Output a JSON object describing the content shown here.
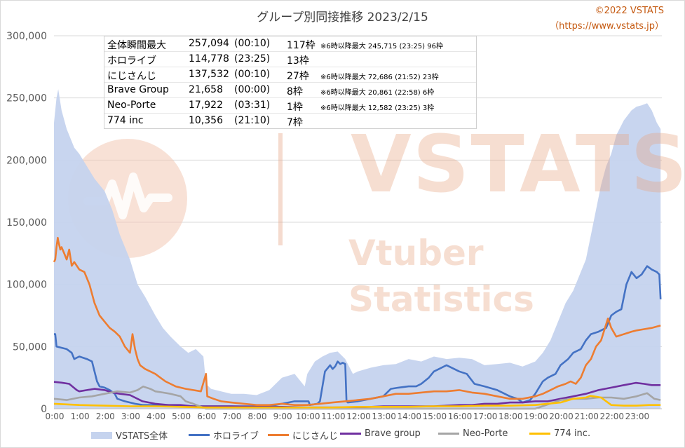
{
  "title": "グループ別同接推移 2023/2/15",
  "credit": {
    "line1": "©2022 VSTATS",
    "line2": "（https://www.vstats.jp）"
  },
  "stats_rows": [
    {
      "name": "全体瞬間最大",
      "value": "257,094",
      "time": "(00:10)",
      "count": "117枠",
      "note": "※6時以降最大 245,715 (23:25) 96枠"
    },
    {
      "name": "ホロライブ",
      "value": "114,778",
      "time": "(23:25)",
      "count": "13枠",
      "note": ""
    },
    {
      "name": "にじさんじ",
      "value": "137,532",
      "time": "(00:10)",
      "count": "27枠",
      "note": "※6時以降最大 72,686 (21:52) 23枠"
    },
    {
      "name": "Brave Group",
      "value": "21,658",
      "time": "(00:00)",
      "count": "8枠",
      "note": "※6時以降最大 20,861 (22:58) 6枠"
    },
    {
      "name": "Neo-Porte",
      "value": "17,922",
      "time": "(03:31)",
      "count": "1枠",
      "note": "※6時以降最大 12,582 (23:25) 3枠"
    },
    {
      "name": "774 inc",
      "value": "10,356",
      "time": "(21:10)",
      "count": "7枠",
      "note": ""
    }
  ],
  "watermark": {
    "brand": "VSTATS",
    "sub1": "Vtuber",
    "sub2": "Statistics"
  },
  "chart_data": {
    "type": "line",
    "title": "グループ別同接推移 2023/2/15",
    "xlabel": "",
    "ylabel": "",
    "xlim": [
      0,
      24
    ],
    "ylim": [
      0,
      300000
    ],
    "y_ticks": [
      0,
      50000,
      100000,
      150000,
      200000,
      250000,
      300000
    ],
    "y_tick_labels": [
      "0",
      "50,000",
      "100,000",
      "150,000",
      "200,000",
      "250,000",
      "300,000"
    ],
    "x_tick_labels": [
      "0:00",
      "1:00",
      "2:00",
      "3:00",
      "4:00",
      "5:00",
      "6:00",
      "7:00",
      "8:00",
      "9:00",
      "10:00",
      "11:00",
      "12:00",
      "13:00",
      "14:00",
      "15:00",
      "16:00",
      "17:00",
      "18:00",
      "19:00",
      "20:00",
      "21:00",
      "22:00",
      "23:00"
    ],
    "grid": "horizontal",
    "legend": "bottom",
    "series": [
      {
        "name": "VSTATS全体",
        "style": "area",
        "color": "#c5d3ee",
        "x": [
          0,
          0.1,
          0.17,
          0.3,
          0.5,
          0.8,
          1.0,
          1.3,
          1.6,
          2.0,
          2.3,
          2.6,
          3.0,
          3.3,
          3.6,
          4.0,
          4.3,
          4.6,
          5.0,
          5.3,
          5.6,
          5.9,
          6.0,
          6.2,
          6.6,
          7.0,
          7.5,
          8.0,
          8.5,
          9.0,
          9.5,
          9.9,
          10.0,
          10.3,
          10.6,
          10.9,
          11.2,
          11.5,
          11.8,
          12.0,
          12.5,
          13.0,
          13.5,
          14.0,
          14.5,
          15.0,
          15.5,
          16.0,
          16.5,
          17.0,
          17.5,
          18.0,
          18.5,
          19.0,
          19.3,
          19.6,
          19.9,
          20.2,
          20.5,
          20.8,
          21.0,
          21.2,
          21.4,
          21.6,
          21.8,
          22.0,
          22.2,
          22.5,
          22.8,
          23.0,
          23.2,
          23.42,
          23.6,
          23.8,
          23.95
        ],
        "values": [
          230000,
          250000,
          257000,
          240000,
          225000,
          210000,
          205000,
          195000,
          185000,
          175000,
          160000,
          140000,
          120000,
          100000,
          90000,
          75000,
          65000,
          58000,
          50000,
          45000,
          48000,
          42000,
          20000,
          16000,
          14000,
          12000,
          12000,
          11000,
          15000,
          25000,
          28000,
          18000,
          28000,
          38000,
          42000,
          45000,
          46000,
          40000,
          28000,
          30000,
          33000,
          35000,
          36000,
          40000,
          38000,
          42000,
          40000,
          41000,
          40000,
          35000,
          36000,
          37000,
          34000,
          38000,
          45000,
          55000,
          70000,
          85000,
          95000,
          110000,
          120000,
          140000,
          160000,
          180000,
          195000,
          205000,
          220000,
          232000,
          240000,
          243000,
          244000,
          245700,
          240000,
          230000,
          225000
        ]
      },
      {
        "name": "ホロライブ",
        "style": "line",
        "color": "#4472c4",
        "x": [
          0,
          0.05,
          0.1,
          0.5,
          0.7,
          0.8,
          1.0,
          1.3,
          1.5,
          1.6,
          1.7,
          1.8,
          2.0,
          2.2,
          2.4,
          2.5,
          2.8,
          3.0,
          3.2,
          3.5,
          3.8,
          4.0,
          4.5,
          5.0,
          5.5,
          6.0,
          6.5,
          7.0,
          7.5,
          8.0,
          8.5,
          9.0,
          9.5,
          10.0,
          10.05,
          10.1,
          10.4,
          10.5,
          10.7,
          10.9,
          11.0,
          11.1,
          11.2,
          11.3,
          11.4,
          11.5,
          11.55,
          11.6,
          12.0,
          12.5,
          13.0,
          13.3,
          13.6,
          14.0,
          14.3,
          14.5,
          14.8,
          15.0,
          15.2,
          15.5,
          16.0,
          16.3,
          16.6,
          17.0,
          17.5,
          18.0,
          18.3,
          18.5,
          18.8,
          19.0,
          19.3,
          19.5,
          19.8,
          20.0,
          20.3,
          20.5,
          20.8,
          21.0,
          21.2,
          21.5,
          21.8,
          22.0,
          22.2,
          22.4,
          22.6,
          22.8,
          23.0,
          23.2,
          23.42,
          23.6,
          23.8,
          23.9,
          23.95
        ],
        "values": [
          60000,
          60000,
          50000,
          48000,
          45000,
          40000,
          42000,
          40000,
          38000,
          30000,
          22000,
          18000,
          17000,
          15000,
          12000,
          8000,
          6000,
          5000,
          4000,
          3000,
          3000,
          3000,
          3000,
          2000,
          2000,
          2000,
          2000,
          2000,
          2000,
          2000,
          2000,
          4000,
          6000,
          6000,
          6000,
          3000,
          4000,
          6000,
          30000,
          35000,
          32000,
          34000,
          38000,
          36000,
          37000,
          36000,
          6000,
          5000,
          6000,
          8000,
          10000,
          16000,
          17000,
          18000,
          18000,
          20000,
          25000,
          30000,
          32000,
          35000,
          30000,
          28000,
          20000,
          18000,
          15000,
          10000,
          8000,
          5000,
          7000,
          12000,
          22000,
          25000,
          28000,
          35000,
          40000,
          45000,
          48000,
          55000,
          60000,
          62000,
          65000,
          75000,
          78000,
          80000,
          100000,
          110000,
          105000,
          108000,
          114700,
          112000,
          110000,
          108000,
          88000
        ]
      },
      {
        "name": "にじさんじ",
        "style": "line",
        "color": "#ed7d31",
        "x": [
          0,
          0.05,
          0.1,
          0.15,
          0.17,
          0.25,
          0.3,
          0.4,
          0.5,
          0.6,
          0.7,
          0.8,
          1.0,
          1.2,
          1.4,
          1.6,
          1.8,
          2.0,
          2.2,
          2.4,
          2.6,
          2.8,
          3.0,
          3.1,
          3.2,
          3.3,
          3.4,
          3.6,
          3.8,
          4.0,
          4.2,
          4.4,
          4.6,
          4.8,
          5.0,
          5.2,
          5.5,
          5.8,
          6.0,
          6.05,
          6.3,
          6.6,
          7.0,
          7.5,
          8.0,
          8.5,
          9.0,
          9.5,
          10.0,
          10.5,
          11.0,
          11.5,
          12.0,
          12.5,
          13.0,
          13.5,
          14.0,
          14.5,
          15.0,
          15.5,
          16.0,
          16.5,
          17.0,
          17.5,
          18.0,
          18.5,
          19.0,
          19.3,
          19.6,
          19.9,
          20.2,
          20.4,
          20.6,
          20.8,
          21.0,
          21.2,
          21.4,
          21.6,
          21.87,
          22.0,
          22.2,
          22.5,
          22.8,
          23.0,
          23.3,
          23.6,
          23.95
        ],
        "values": [
          118000,
          120000,
          130000,
          137500,
          135000,
          128000,
          130000,
          125000,
          120000,
          128000,
          115000,
          118000,
          112000,
          110000,
          100000,
          85000,
          75000,
          70000,
          65000,
          62000,
          58000,
          50000,
          45000,
          60000,
          48000,
          40000,
          35000,
          32000,
          30000,
          28000,
          25000,
          22000,
          20000,
          18000,
          17000,
          16000,
          15000,
          14000,
          28000,
          10000,
          8000,
          6000,
          5000,
          4000,
          3000,
          3000,
          4000,
          3000,
          3000,
          4000,
          5000,
          6000,
          7000,
          8000,
          10000,
          12000,
          12000,
          13000,
          14000,
          14000,
          15000,
          13000,
          12000,
          10000,
          8000,
          8000,
          10000,
          12000,
          15000,
          18000,
          20000,
          22000,
          20000,
          25000,
          35000,
          40000,
          50000,
          55000,
          72600,
          65000,
          58000,
          60000,
          62000,
          63000,
          64000,
          65000,
          67000
        ]
      },
      {
        "name": "Brave group",
        "style": "line",
        "color": "#7030a0",
        "x": [
          0,
          0.3,
          0.6,
          0.9,
          1.0,
          1.3,
          1.6,
          2.0,
          2.3,
          2.6,
          3.0,
          3.5,
          4.0,
          4.5,
          5.0,
          5.5,
          6.0,
          7.0,
          8.0,
          9.0,
          10.0,
          11.0,
          12.0,
          13.0,
          14.0,
          15.0,
          16.0,
          16.5,
          17.0,
          17.5,
          18.0,
          18.5,
          19.0,
          19.5,
          20.0,
          20.5,
          21.0,
          21.5,
          22.0,
          22.5,
          22.97,
          23.3,
          23.6,
          23.95
        ],
        "values": [
          21600,
          21000,
          20000,
          15000,
          14000,
          15000,
          16000,
          15000,
          13000,
          12000,
          11000,
          6000,
          4000,
          3000,
          3000,
          2000,
          2000,
          2000,
          1500,
          1500,
          1000,
          1000,
          1000,
          2000,
          2000,
          2000,
          3000,
          3000,
          4000,
          4000,
          5000,
          5000,
          6000,
          6000,
          8000,
          10000,
          12000,
          15000,
          17000,
          19000,
          20800,
          20000,
          19000,
          19000
        ]
      },
      {
        "name": "Neo-Porte",
        "style": "line",
        "color": "#a5a5a5",
        "x": [
          0,
          0.5,
          1.0,
          1.5,
          2.0,
          2.5,
          3.0,
          3.3,
          3.52,
          3.8,
          4.0,
          4.3,
          4.6,
          5.0,
          5.2,
          5.5,
          6.0,
          7.0,
          8.0,
          9.0,
          10.0,
          11.0,
          12.0,
          13.0,
          14.0,
          15.0,
          16.0,
          17.0,
          18.0,
          19.0,
          20.0,
          20.5,
          21.0,
          21.5,
          22.0,
          22.5,
          23.0,
          23.42,
          23.7,
          23.95
        ],
        "values": [
          8000,
          7000,
          9000,
          10000,
          12000,
          14000,
          13000,
          15000,
          17900,
          16000,
          14000,
          13000,
          12000,
          10000,
          6000,
          4000,
          0,
          0,
          0,
          0,
          0,
          0,
          0,
          0,
          0,
          0,
          0,
          0,
          0,
          0,
          7000,
          8000,
          8000,
          9000,
          9000,
          8000,
          10000,
          12500,
          8000,
          7000
        ]
      },
      {
        "name": "774 inc.",
        "style": "line",
        "color": "#ffc000",
        "x": [
          0,
          0.5,
          1.0,
          2.0,
          3.0,
          4.0,
          5.0,
          6.0,
          7.0,
          8.0,
          9.0,
          10.0,
          11.0,
          12.0,
          13.0,
          14.0,
          15.0,
          16.0,
          17.0,
          18.0,
          19.0,
          20.0,
          20.5,
          21.0,
          21.17,
          21.3,
          21.6,
          22.0,
          22.5,
          23.0,
          23.5,
          23.95
        ],
        "values": [
          4000,
          3500,
          3000,
          2500,
          2000,
          2000,
          1500,
          1000,
          1000,
          1000,
          1000,
          1000,
          1000,
          1500,
          1500,
          1500,
          2000,
          2000,
          2500,
          2500,
          3000,
          5000,
          8000,
          9000,
          10300,
          10000,
          9000,
          3000,
          2500,
          2500,
          3000,
          3000
        ]
      }
    ]
  },
  "legend_items": [
    {
      "label": "VSTATS全体",
      "color": "#c5d3ee",
      "kind": "area"
    },
    {
      "label": "ホロライブ",
      "color": "#4472c4",
      "kind": "line"
    },
    {
      "label": "にじさんじ",
      "color": "#ed7d31",
      "kind": "line"
    },
    {
      "label": "Brave group",
      "color": "#7030a0",
      "kind": "line"
    },
    {
      "label": "Neo-Porte",
      "color": "#a5a5a5",
      "kind": "line"
    },
    {
      "label": "774 inc.",
      "color": "#ffc000",
      "kind": "line"
    }
  ]
}
